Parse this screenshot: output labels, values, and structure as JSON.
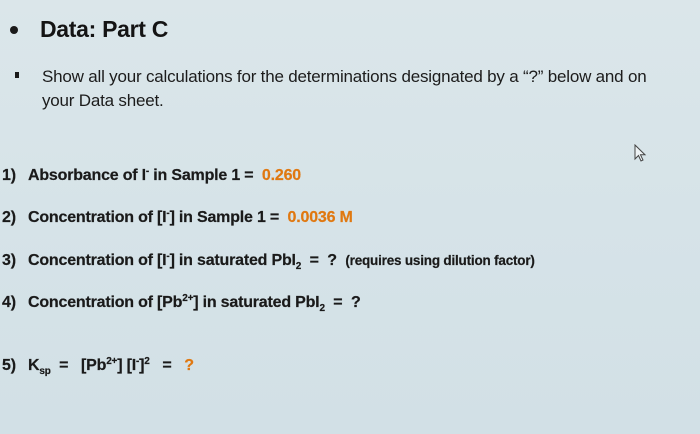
{
  "title": "Data: Part C",
  "instructions": "Show all your calculations for the determinations designated by a “?” below and on your Data sheet.",
  "accent_color": "#e07810",
  "cursor_icon": "mouse-pointer-arrow",
  "items": [
    {
      "number": "1)",
      "segments": [
        {
          "t": "Absorbance of I"
        },
        {
          "t": "-",
          "k": "sup"
        },
        {
          "t": " in Sample 1 =  "
        },
        {
          "t": "0.260",
          "k": "val"
        }
      ]
    },
    {
      "number": "2)",
      "segments": [
        {
          "t": "Concentration of [I"
        },
        {
          "t": "-",
          "k": "sup"
        },
        {
          "t": "] in Sample 1 =  "
        },
        {
          "t": "0.0036 M",
          "k": "val"
        }
      ]
    },
    {
      "number": "3)",
      "segments": [
        {
          "t": "Concentration of [I"
        },
        {
          "t": "-",
          "k": "sup"
        },
        {
          "t": "] in saturated PbI"
        },
        {
          "t": "2",
          "k": "sub"
        },
        {
          "t": "  =  ?  "
        },
        {
          "t": "(requires using dilution factor)",
          "k": "small"
        }
      ]
    },
    {
      "number": "4)",
      "segments": [
        {
          "t": "Concentration of [Pb"
        },
        {
          "t": "2+",
          "k": "sup"
        },
        {
          "t": "] in saturated PbI"
        },
        {
          "t": "2",
          "k": "sub"
        },
        {
          "t": "  =  ?"
        }
      ]
    },
    {
      "number": "5)",
      "segments": [
        {
          "t": "K"
        },
        {
          "t": "sp",
          "k": "sub"
        },
        {
          "t": "  =   [Pb"
        },
        {
          "t": "2+",
          "k": "sup"
        },
        {
          "t": "] [I"
        },
        {
          "t": "-",
          "k": "sup"
        },
        {
          "t": "]"
        },
        {
          "t": "2",
          "k": "sup"
        },
        {
          "t": "   =   "
        },
        {
          "t": "?",
          "k": "val"
        }
      ]
    }
  ]
}
